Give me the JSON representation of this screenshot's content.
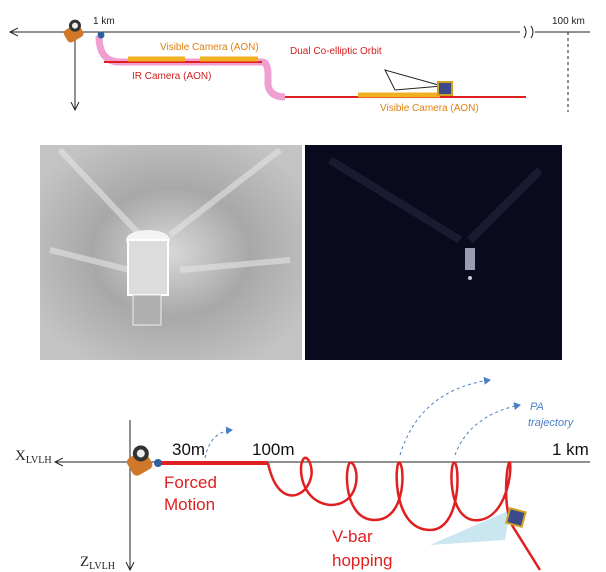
{
  "top_diagram": {
    "start_label": "1 km",
    "end_label": "100 km",
    "visible_camera_1": "Visible Camera (AON)",
    "ir_camera": "IR Camera (AON)",
    "orbit_label": "Dual Co-elliptic Orbit",
    "visible_camera_2": "Visible Camera (AON)"
  },
  "bottom_diagram": {
    "x_axis": "X",
    "x_axis_sub": "LVLH",
    "z_axis": "Z",
    "z_axis_sub": "LVLH",
    "mark_30m": "30m",
    "mark_100m": "100m",
    "mark_1km": "1 km",
    "forced_1": "Forced",
    "forced_2": "Motion",
    "vbar_1": "V-bar",
    "vbar_2": "hopping",
    "pa_1": "PA",
    "pa_2": "trajectory"
  }
}
